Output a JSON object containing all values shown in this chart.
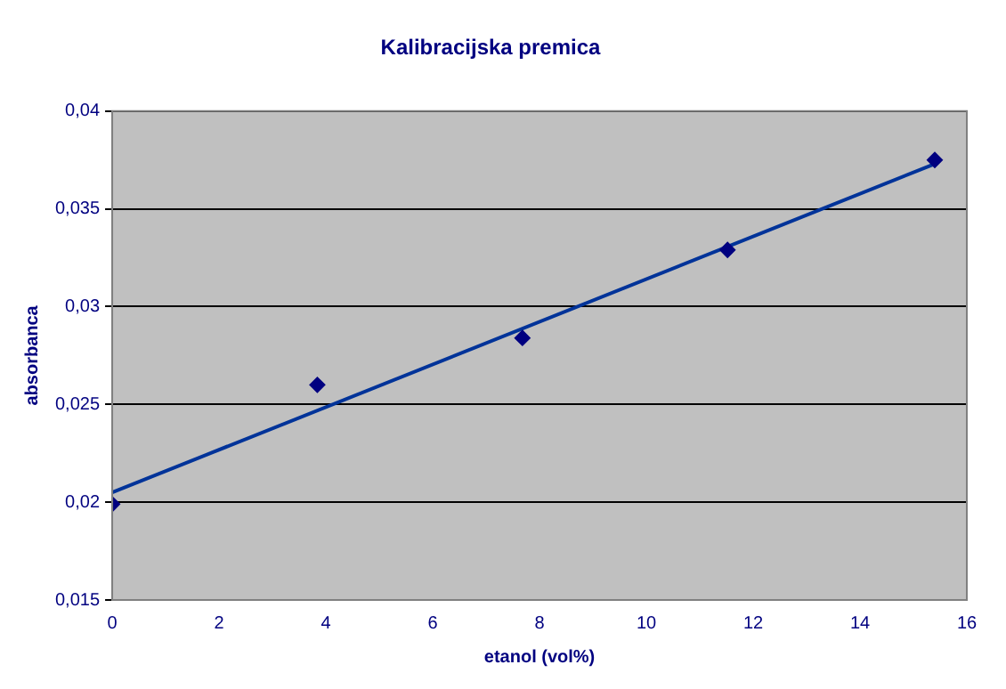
{
  "chart_data": {
    "type": "scatter",
    "title": "Kalibracijska premica",
    "xlabel": "etanol (vol%)",
    "ylabel": "absorbanca",
    "series": [
      {
        "type": "scatter",
        "color": "#000080",
        "x": [
          0,
          3.84,
          7.68,
          11.52,
          15.4
        ],
        "values": [
          0.0199,
          0.026,
          0.0284,
          0.0329,
          0.0375
        ],
        "marker": "diamond"
      },
      {
        "type": "line",
        "color": "#003399",
        "x": [
          0,
          15.4
        ],
        "values": [
          0.0205,
          0.0373
        ],
        "marker": "none",
        "line_style": "solid"
      }
    ],
    "xlim": [
      0,
      16
    ],
    "xticks": [
      0,
      2,
      4,
      6,
      8,
      10,
      12,
      14,
      16
    ],
    "ylim": [
      0.015,
      0.04
    ],
    "yticks": [
      {
        "value": 0.015,
        "label": "0,015"
      },
      {
        "value": 0.02,
        "label": "0,02"
      },
      {
        "value": 0.025,
        "label": "0,025"
      },
      {
        "value": 0.03,
        "label": "0,03"
      },
      {
        "value": 0.035,
        "label": "0,035"
      },
      {
        "value": 0.04,
        "label": "0,04"
      }
    ],
    "grid": "y",
    "legend": false
  }
}
